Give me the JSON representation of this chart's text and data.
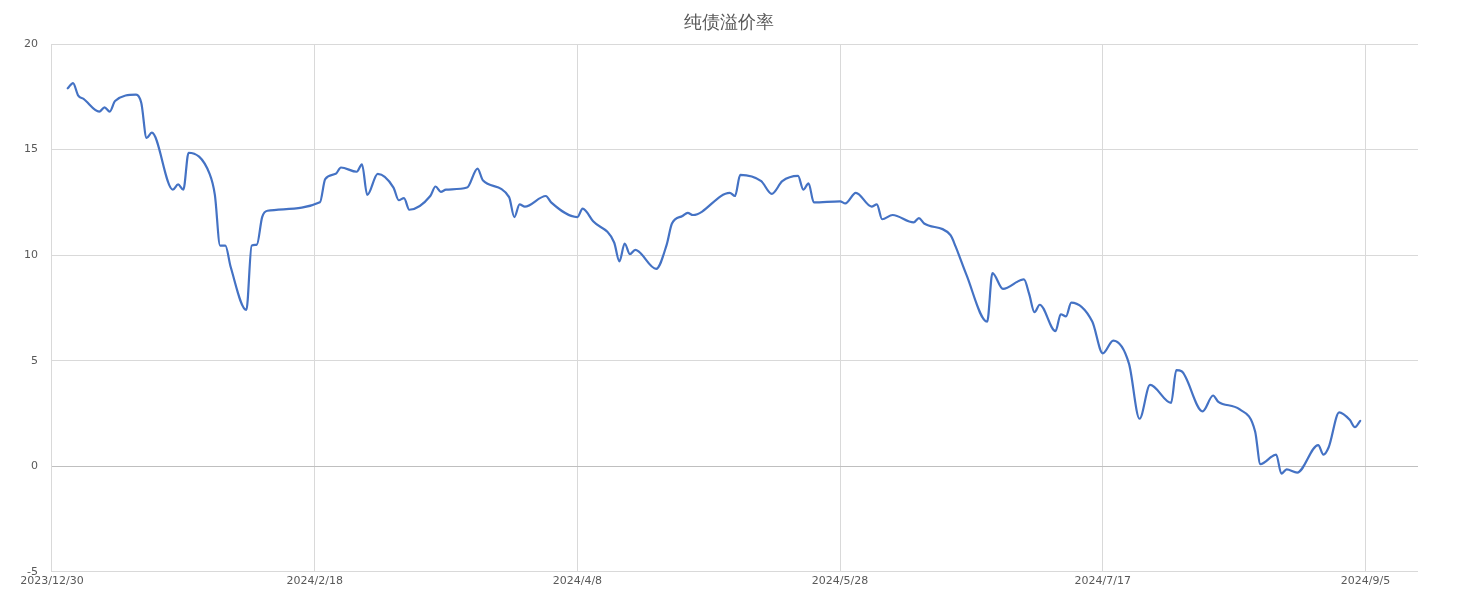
{
  "chart_data": {
    "type": "line",
    "title": "纯债溢价率",
    "x": [
      "2024-01-02",
      "2024-01-03",
      "2024-01-04",
      "2024-01-05",
      "2024-01-08",
      "2024-01-09",
      "2024-01-10",
      "2024-01-11",
      "2024-01-15",
      "2024-01-16",
      "2024-01-17",
      "2024-01-18",
      "2024-01-22",
      "2024-01-23",
      "2024-01-24",
      "2024-01-25",
      "2024-01-29",
      "2024-01-30",
      "2024-01-31",
      "2024-02-01",
      "2024-02-02",
      "2024-02-05",
      "2024-02-06",
      "2024-02-07",
      "2024-02-08",
      "2024-02-09",
      "2024-02-19",
      "2024-02-20",
      "2024-02-22",
      "2024-02-23",
      "2024-02-26",
      "2024-02-27",
      "2024-02-28",
      "2024-03-01",
      "2024-03-04",
      "2024-03-05",
      "2024-03-06",
      "2024-03-07",
      "2024-03-11",
      "2024-03-12",
      "2024-03-13",
      "2024-03-14",
      "2024-03-18",
      "2024-03-20",
      "2024-03-21",
      "2024-03-26",
      "2024-03-27",
      "2024-03-28",
      "2024-03-29",
      "2024-04-02",
      "2024-04-03",
      "2024-04-08",
      "2024-04-09",
      "2024-04-11",
      "2024-04-15",
      "2024-04-16",
      "2024-04-17",
      "2024-04-18",
      "2024-04-19",
      "2024-04-23",
      "2024-04-25",
      "2024-04-26",
      "2024-04-28",
      "2024-04-29",
      "2024-04-30",
      "2024-05-07",
      "2024-05-08",
      "2024-05-09",
      "2024-05-13",
      "2024-05-15",
      "2024-05-17",
      "2024-05-20",
      "2024-05-21",
      "2024-05-22",
      "2024-05-23",
      "2024-05-28",
      "2024-05-29",
      "2024-05-31",
      "2024-06-03",
      "2024-06-04",
      "2024-06-05",
      "2024-06-07",
      "2024-06-11",
      "2024-06-12",
      "2024-06-13",
      "2024-06-18",
      "2024-06-19",
      "2024-06-21",
      "2024-06-25",
      "2024-06-26",
      "2024-06-28",
      "2024-07-02",
      "2024-07-03",
      "2024-07-04",
      "2024-07-05",
      "2024-07-08",
      "2024-07-09",
      "2024-07-10",
      "2024-07-11",
      "2024-07-15",
      "2024-07-17",
      "2024-07-19",
      "2024-07-22",
      "2024-07-24",
      "2024-07-26",
      "2024-07-30",
      "2024-07-31",
      "2024-08-01",
      "2024-08-05",
      "2024-08-07",
      "2024-08-08",
      "2024-08-12",
      "2024-08-15",
      "2024-08-16",
      "2024-08-19",
      "2024-08-20",
      "2024-08-21",
      "2024-08-23",
      "2024-08-27",
      "2024-08-28",
      "2024-08-29",
      "2024-08-31",
      "2024-09-02",
      "2024-09-03",
      "2024-09-04"
    ],
    "series": [
      {
        "color": "#4472c4",
        "values": [
          17.9,
          18.15,
          17.55,
          17.4,
          16.8,
          17.0,
          16.8,
          17.3,
          17.6,
          17.2,
          15.55,
          15.8,
          13.1,
          13.35,
          13.1,
          14.85,
          13.85,
          12.85,
          10.45,
          10.45,
          9.45,
          7.4,
          10.45,
          10.5,
          11.8,
          12.1,
          12.5,
          13.6,
          13.85,
          14.15,
          13.95,
          14.3,
          12.85,
          13.85,
          13.2,
          12.6,
          12.7,
          12.15,
          12.8,
          13.25,
          13.0,
          13.1,
          13.2,
          14.1,
          13.55,
          12.75,
          11.8,
          12.4,
          12.3,
          12.8,
          12.5,
          11.8,
          12.2,
          11.6,
          10.6,
          9.7,
          10.55,
          10.05,
          10.25,
          9.35,
          10.5,
          11.5,
          11.85,
          12.0,
          11.9,
          12.95,
          12.8,
          13.8,
          13.5,
          12.9,
          13.5,
          13.75,
          13.1,
          13.4,
          12.5,
          12.55,
          12.45,
          12.95,
          12.3,
          12.4,
          11.7,
          11.9,
          11.55,
          11.75,
          11.5,
          10.95,
          10.4,
          9.1,
          6.85,
          9.15,
          8.4,
          8.85,
          8.15,
          7.3,
          7.65,
          6.4,
          7.2,
          7.1,
          7.75,
          6.85,
          5.35,
          5.95,
          4.85,
          2.25,
          3.85,
          3.0,
          4.55,
          4.5,
          2.6,
          3.35,
          3.05,
          2.7,
          1.65,
          0.1,
          0.55,
          -0.35,
          -0.15,
          -0.3,
          1.0,
          0.55,
          0.9,
          2.55,
          2.2,
          1.85,
          2.15
        ]
      }
    ],
    "xlim": [
      "2023-12-30",
      "2024-09-15"
    ],
    "xticks": [
      {
        "value": "2023-12-30",
        "label": "2023/12/30"
      },
      {
        "value": "2024-02-18",
        "label": "2024/2/18"
      },
      {
        "value": "2024-04-08",
        "label": "2024/4/8"
      },
      {
        "value": "2024-05-28",
        "label": "2024/5/28"
      },
      {
        "value": "2024-07-17",
        "label": "2024/7/17"
      },
      {
        "value": "2024-09-05",
        "label": "2024/9/5"
      }
    ],
    "ylim": [
      -5,
      20
    ],
    "yticks": [
      -5,
      0,
      5,
      10,
      15,
      20
    ],
    "grid": true,
    "legend": false,
    "marker": "none",
    "line_style": "solid"
  }
}
